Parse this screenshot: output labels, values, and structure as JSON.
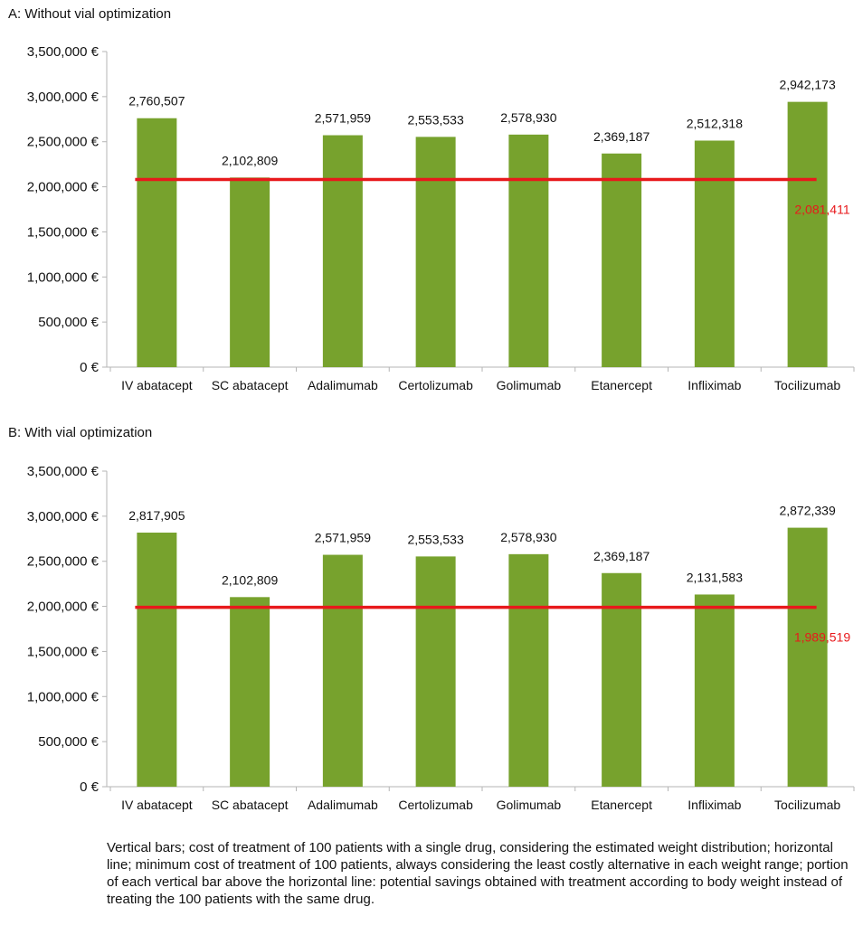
{
  "chart_data": [
    {
      "type": "bar",
      "title": "A: Without vial optimization",
      "categories": [
        "IV abatacept",
        "SC abatacept",
        "Adalimumab",
        "Certolizumab",
        "Golimumab",
        "Etanercept",
        "Infliximab",
        "Tocilizumab"
      ],
      "values": [
        2760507,
        2102809,
        2571959,
        2553533,
        2578930,
        2369187,
        2512318,
        2942173
      ],
      "value_labels": [
        "2,760,507",
        "2,102,809",
        "2,571,959",
        "2,553,533",
        "2,578,930",
        "2,369,187",
        "2,512,318",
        "2,942,173"
      ],
      "reference_line": {
        "value": 2081411,
        "label": "2,081,411",
        "color": "#e8191c"
      },
      "ylim": [
        0,
        3500000
      ],
      "yticks": [
        0,
        500000,
        1000000,
        1500000,
        2000000,
        2500000,
        3000000,
        3500000
      ],
      "ytick_labels": [
        "0 €",
        "500,000 €",
        "1,000,000 €",
        "1,500,000 €",
        "2,000,000 €",
        "2,500,000 €",
        "3,000,000 €",
        "3,500,000 €"
      ],
      "grid": false,
      "bar_color": "#77a22d"
    },
    {
      "type": "bar",
      "title": "B: With vial optimization",
      "categories": [
        "IV abatacept",
        "SC abatacept",
        "Adalimumab",
        "Certolizumab",
        "Golimumab",
        "Etanercept",
        "Infliximab",
        "Tocilizumab"
      ],
      "values": [
        2817905,
        2102809,
        2571959,
        2553533,
        2578930,
        2369187,
        2131583,
        2872339
      ],
      "value_labels": [
        "2,817,905",
        "2,102,809",
        "2,571,959",
        "2,553,533",
        "2,578,930",
        "2,369,187",
        "2,131,583",
        "2,872,339"
      ],
      "reference_line": {
        "value": 1989519,
        "label": "1,989,519",
        "color": "#e8191c"
      },
      "ylim": [
        0,
        3500000
      ],
      "yticks": [
        0,
        500000,
        1000000,
        1500000,
        2000000,
        2500000,
        3000000,
        3500000
      ],
      "ytick_labels": [
        "0 €",
        "500,000 €",
        "1,000,000 €",
        "1,500,000 €",
        "2,000,000 €",
        "2,500,000 €",
        "3,000,000 €",
        "3,500,000 €"
      ],
      "grid": false,
      "bar_color": "#77a22d"
    }
  ],
  "caption": "Vertical bars; cost of treatment of 100 patients with a single drug, considering the estimated weight distribution; horizontal line; minimum cost of treatment of 100 patients, always considering the least costly alternative in each weight range; portion of each vertical bar above the horizontal line: potential savings obtained with treatment according to body weight instead of treating the 100 patients with the same drug."
}
